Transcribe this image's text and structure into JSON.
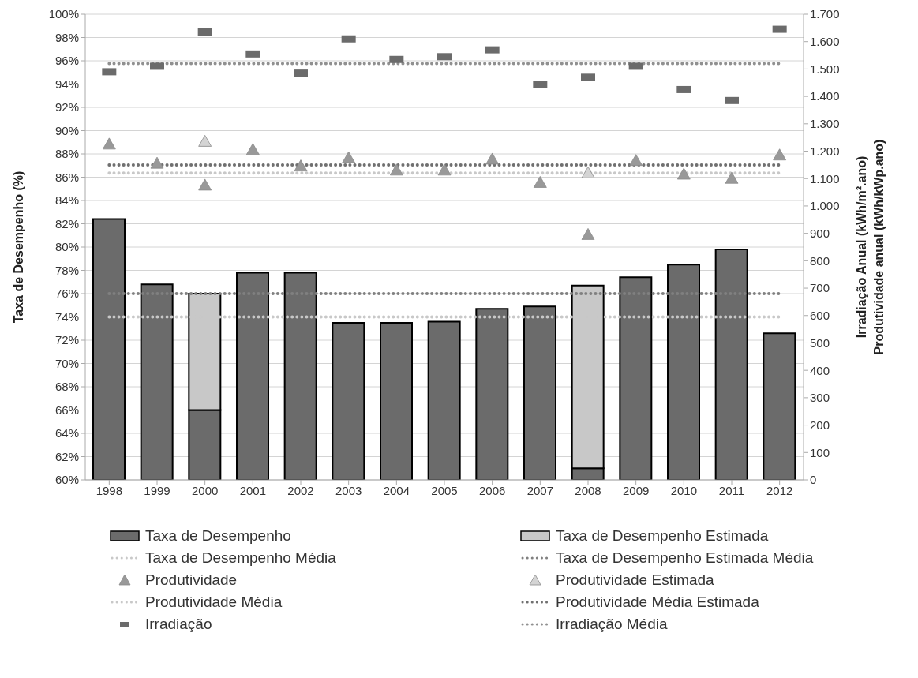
{
  "chart_data": {
    "type": "bar",
    "ylabel": "Taxa de Desempenho  (%)",
    "y2label": "Irradiação Anual (kWh/m².ano)\nProdutividade anual (kWh/kWp.ano)",
    "categories": [
      "1998",
      "1999",
      "2000",
      "2001",
      "2002",
      "2003",
      "2004",
      "2005",
      "2006",
      "2007",
      "2008",
      "2009",
      "2010",
      "2011",
      "2012"
    ],
    "series": [
      {
        "name": "Taxa de Desempenho",
        "color": "#6b6b6b",
        "values": [
          82.4,
          76.8,
          66.0,
          77.8,
          77.8,
          73.5,
          73.5,
          73.6,
          74.7,
          74.9,
          61.0,
          77.4,
          78.5,
          79.8,
          72.6
        ]
      },
      {
        "name": "Taxa de Desempenho Estimada",
        "color": "#c8c8c8",
        "base": [
          null,
          null,
          66.0,
          null,
          null,
          null,
          null,
          null,
          null,
          null,
          61.0,
          null,
          null,
          null,
          null
        ],
        "values": [
          null,
          null,
          10.0,
          null,
          null,
          null,
          null,
          null,
          null,
          null,
          15.7,
          null,
          null,
          null,
          null
        ]
      },
      {
        "name": "Taxa de Desempenho Média",
        "type": "line",
        "color": "#c8c8c8",
        "line_style": "dotted",
        "marker": "none",
        "values": [
          74,
          74,
          74,
          74,
          74,
          74,
          74,
          74,
          74,
          74,
          74,
          74,
          74,
          74,
          74
        ]
      },
      {
        "name": "Taxa de Desempenho Estimada Média",
        "type": "line",
        "color": "#808080",
        "line_style": "dotted",
        "marker": "none",
        "values": [
          76,
          76,
          76,
          76,
          76,
          76,
          76,
          76,
          76,
          76,
          76,
          76,
          76,
          76,
          76
        ]
      },
      {
        "name": "Produtividade",
        "type": "scatter",
        "axis": "y2",
        "color": "#999999",
        "marker": "triangle",
        "values": [
          1225,
          1155,
          1075,
          1205,
          1145,
          1175,
          1130,
          1130,
          1170,
          1085,
          895,
          1165,
          1115,
          1100,
          1185
        ]
      },
      {
        "name": "Produtividade Estimada",
        "type": "scatter",
        "axis": "y2",
        "color": "#d4d4d4",
        "marker": "triangle",
        "values": [
          null,
          null,
          1235,
          null,
          null,
          null,
          null,
          null,
          null,
          null,
          1120,
          null,
          null,
          null,
          null
        ]
      },
      {
        "name": "Produtividade Média",
        "type": "line",
        "axis": "y2",
        "color": "#c8c8c8",
        "line_style": "dotted",
        "marker": "none",
        "values": [
          1120,
          1120,
          1120,
          1120,
          1120,
          1120,
          1120,
          1120,
          1120,
          1120,
          1120,
          1120,
          1120,
          1120,
          1120
        ]
      },
      {
        "name": "Produtividade Média Estimada",
        "type": "line",
        "axis": "y2",
        "color": "#707070",
        "line_style": "dotted",
        "marker": "none",
        "values": [
          1150,
          1150,
          1150,
          1150,
          1150,
          1150,
          1150,
          1150,
          1150,
          1150,
          1150,
          1150,
          1150,
          1150,
          1150
        ]
      },
      {
        "name": "Irradiação",
        "type": "scatter",
        "axis": "y2",
        "color": "#6b6b6b",
        "marker": "square",
        "values": [
          1490,
          1510,
          1635,
          1555,
          1485,
          1610,
          1535,
          1545,
          1570,
          1445,
          1470,
          1510,
          1425,
          1385,
          1645
        ]
      },
      {
        "name": "Irradiação Média",
        "type": "line",
        "axis": "y2",
        "color": "#909090",
        "line_style": "dotted",
        "marker": "none",
        "values": [
          1520,
          1520,
          1520,
          1520,
          1520,
          1520,
          1520,
          1520,
          1520,
          1520,
          1520,
          1520,
          1520,
          1520,
          1520
        ]
      }
    ],
    "ylim": [
      60,
      100
    ],
    "yticks": [
      {
        "value": 60,
        "label": "60%"
      },
      {
        "value": 62,
        "label": "62%"
      },
      {
        "value": 64,
        "label": "64%"
      },
      {
        "value": 66,
        "label": "66%"
      },
      {
        "value": 68,
        "label": "68%"
      },
      {
        "value": 70,
        "label": "70%"
      },
      {
        "value": 72,
        "label": "72%"
      },
      {
        "value": 74,
        "label": "74%"
      },
      {
        "value": 76,
        "label": "76%"
      },
      {
        "value": 78,
        "label": "78%"
      },
      {
        "value": 80,
        "label": "80%"
      },
      {
        "value": 82,
        "label": "82%"
      },
      {
        "value": 84,
        "label": "84%"
      },
      {
        "value": 86,
        "label": "86%"
      },
      {
        "value": 88,
        "label": "88%"
      },
      {
        "value": 90,
        "label": "90%"
      },
      {
        "value": 92,
        "label": "92%"
      },
      {
        "value": 94,
        "label": "94%"
      },
      {
        "value": 96,
        "label": "96%"
      },
      {
        "value": 98,
        "label": "98%"
      },
      {
        "value": 100,
        "label": "100%"
      }
    ],
    "y2lim": [
      0,
      1700
    ],
    "y2ticks": [
      0,
      100,
      200,
      300,
      400,
      500,
      600,
      700,
      800,
      900,
      {
        "value": 1000,
        "label": "1.000"
      },
      {
        "value": 1100,
        "label": "1.100"
      },
      {
        "value": 1200,
        "label": "1.200"
      },
      {
        "value": 1300,
        "label": "1.300"
      },
      {
        "value": 1400,
        "label": "1.400"
      },
      {
        "value": 1500,
        "label": "1.500"
      },
      {
        "value": 1600,
        "label": "1.600"
      },
      {
        "value": 1700,
        "label": "1.700"
      }
    ],
    "grid": "y",
    "legend": "bottom"
  }
}
